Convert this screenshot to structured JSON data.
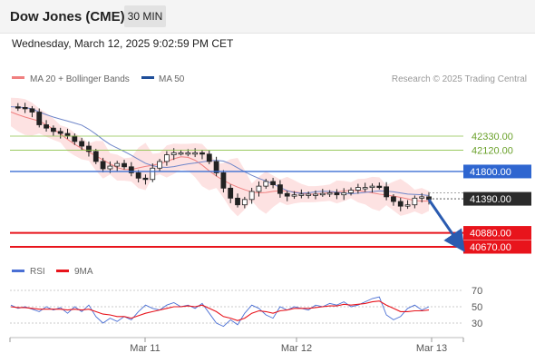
{
  "header": {
    "title": "Dow Jones (CME)",
    "timeframe": "30 MIN"
  },
  "timestamp": "Wednesday, March 12, 2025 9:02:59 PM CET",
  "copyright": "Research © 2025 Trading Central",
  "colors": {
    "bollinger": "#f08080",
    "ma50": "#1f4e99",
    "resistance": "#3b6fd4",
    "support": "#e8141c",
    "target_lines": "#8bc34a",
    "rsi": "#4a6fd4",
    "rsi_ma": "#e8141c"
  },
  "chart_data": [
    {
      "type": "candlestick",
      "legend": [
        {
          "label": "MA 20 + Bollinger Bands",
          "color": "#f08080"
        },
        {
          "label": "MA 50",
          "color": "#1f4e99"
        }
      ],
      "x_ticks": [
        "Mar 11",
        "Mar 12",
        "Mar 13"
      ],
      "ylim": [
        40550,
        42700
      ],
      "levels": [
        {
          "label": "42330.00",
          "value": 42330,
          "kind": "target"
        },
        {
          "label": "42120.00",
          "value": 42120,
          "kind": "target"
        },
        {
          "label": "41800.00",
          "value": 41800,
          "kind": "resistance"
        },
        {
          "label": "41390.00",
          "value": 41390,
          "kind": "last"
        },
        {
          "label": "40880.00",
          "value": 40880,
          "kind": "support"
        },
        {
          "label": "40670.00",
          "value": 40670,
          "kind": "support"
        }
      ],
      "close_path": [
        42770,
        42760,
        42740,
        42690,
        42500,
        42450,
        42400,
        42370,
        42330,
        42250,
        42180,
        42100,
        41950,
        41840,
        41880,
        41920,
        41870,
        41780,
        41700,
        41680,
        41850,
        41950,
        42050,
        42080,
        42080,
        42080,
        42080,
        42060,
        41950,
        41780,
        41550,
        41400,
        41300,
        41380,
        41500,
        41580,
        41650,
        41600,
        41470,
        41430,
        41450,
        41460,
        41460,
        41460,
        41470,
        41480,
        41450,
        41480,
        41520,
        41560,
        41560,
        41580,
        41570,
        41420,
        41350,
        41280,
        41300,
        41400,
        41420,
        41380
      ]
    },
    {
      "type": "line",
      "legend": [
        {
          "label": "RSI",
          "color": "#4a6fd4"
        },
        {
          "label": "9MA",
          "color": "#e8141c"
        }
      ],
      "y_ticks": [
        "70",
        "50",
        "30"
      ],
      "ylim": [
        20,
        80
      ],
      "series": [
        {
          "name": "RSI",
          "values": [
            52,
            48,
            50,
            47,
            44,
            50,
            46,
            49,
            42,
            50,
            44,
            52,
            38,
            30,
            36,
            32,
            38,
            34,
            44,
            52,
            48,
            46,
            52,
            55,
            50,
            52,
            48,
            54,
            42,
            30,
            26,
            34,
            28,
            42,
            52,
            48,
            40,
            36,
            50,
            46,
            50,
            48,
            46,
            52,
            50,
            54,
            52,
            56,
            50,
            52,
            56,
            60,
            62,
            40,
            34,
            38,
            48,
            52,
            46,
            50
          ]
        },
        {
          "name": "9MA",
          "values": [
            50,
            49,
            49,
            48,
            47,
            47,
            47,
            47,
            46,
            47,
            46,
            47,
            44,
            41,
            40,
            38,
            38,
            36,
            39,
            42,
            44,
            46,
            48,
            50,
            50,
            51,
            50,
            52,
            48,
            44,
            38,
            36,
            33,
            36,
            42,
            45,
            44,
            42,
            45,
            46,
            48,
            48,
            48,
            49,
            50,
            51,
            51,
            53,
            52,
            53,
            54,
            56,
            57,
            52,
            48,
            44,
            44,
            45,
            45,
            46
          ]
        }
      ]
    }
  ]
}
